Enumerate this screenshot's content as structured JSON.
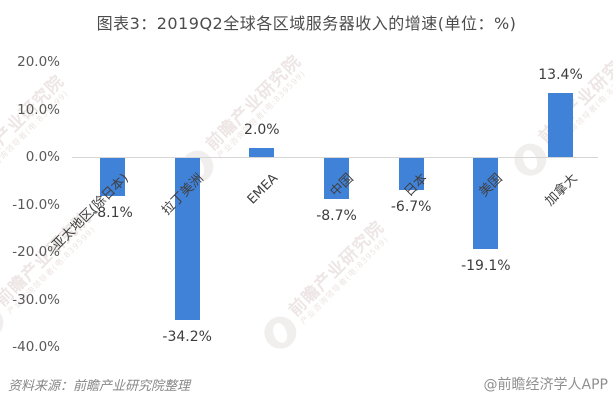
{
  "title": "图表3：2019Q2全球各区域服务器收入的增速(单位：%)",
  "chart_data": {
    "type": "bar",
    "title": "图表3：2019Q2全球各区域服务器收入的增速(单位：%)",
    "categories": [
      "亚太地区(除日本)",
      "拉丁美洲",
      "EMEA",
      "中国",
      "日本",
      "美国",
      "加拿大"
    ],
    "values": [
      -8.1,
      -34.2,
      2.0,
      -8.7,
      -6.7,
      -19.1,
      13.4
    ],
    "data_labels": [
      "-8.1%",
      "-34.2%",
      "2.0%",
      "-8.7%",
      "-6.7%",
      "-19.1%",
      "13.4%"
    ],
    "xlabel": "",
    "ylabel": "",
    "ylim": [
      -40,
      20
    ],
    "ytick_labels": [
      "20.0%",
      "10.0%",
      "0.0%",
      "-10.0%",
      "-20.0%",
      "-30.0%",
      "-40.0%"
    ],
    "grid": false,
    "legend": "none",
    "bar_color": "#4182d9"
  },
  "footer": {
    "source": "资料来源：前瞻产业研究院整理",
    "credit": "@前瞻经济学人APP"
  },
  "watermark": {
    "brand": "前瞻产业研究院",
    "sub": "产业咨询领导者(电:839599)",
    "logo_icon": "qianzhan-logo-icon"
  },
  "colors": {
    "bar": "#4182d9",
    "axis_line": "#d6d6d6",
    "title_text": "#4c4c4c",
    "tick_text": "#595959",
    "label_text": "#3d3d3d",
    "footer_text": "#878787"
  }
}
